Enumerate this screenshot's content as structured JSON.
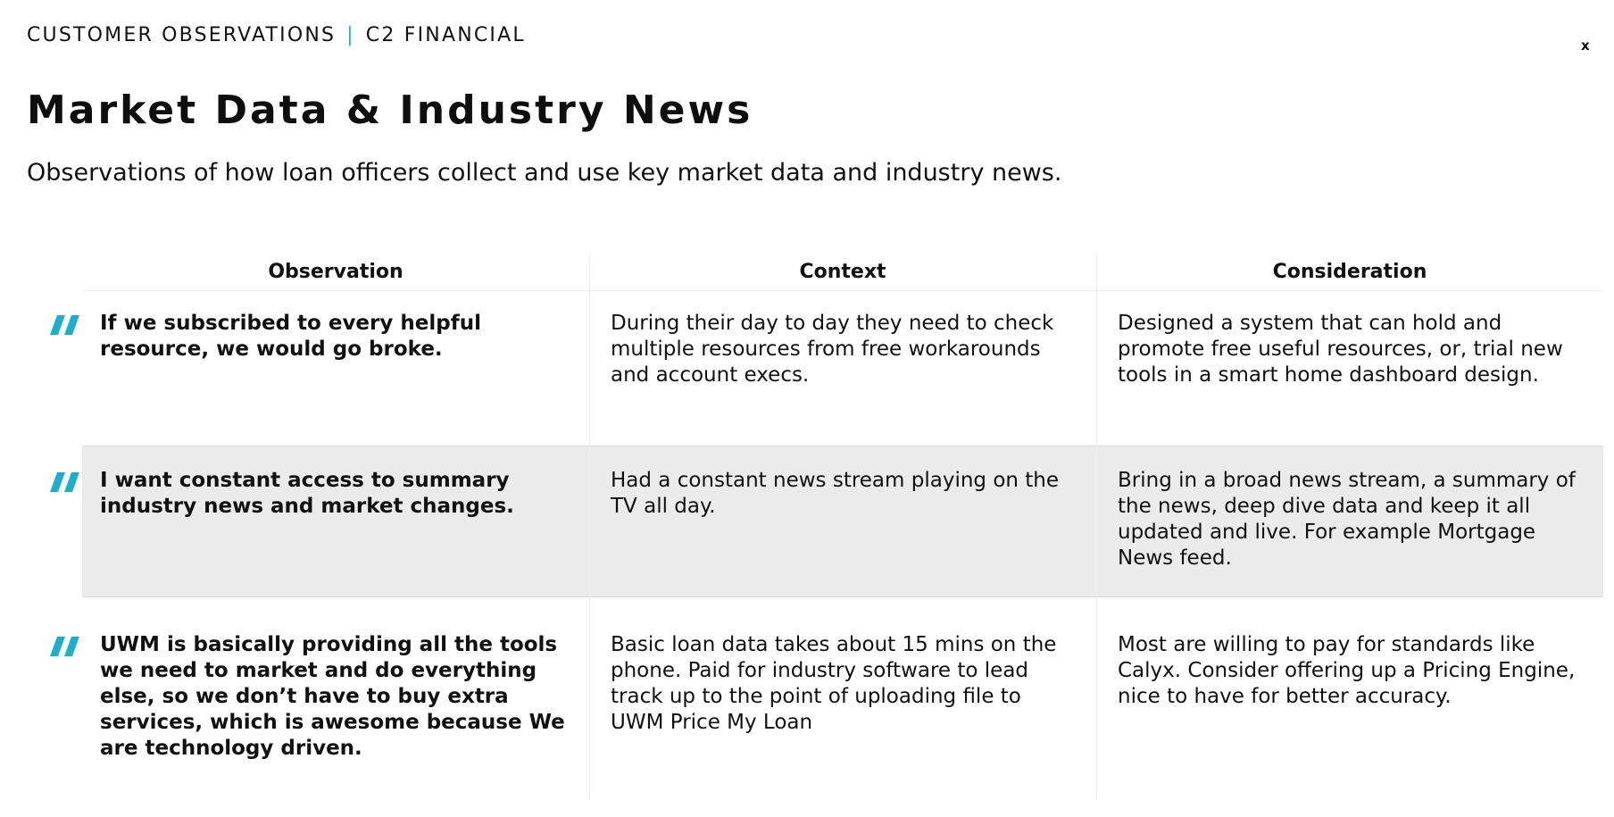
{
  "header": {
    "brand_left": "CUSTOMER OBSERVATIONS",
    "brand_sep": "|",
    "brand_right": "C2 FINANCIAL",
    "close_label": "x"
  },
  "page": {
    "title": "Market Data & Industry News",
    "subtitle": "Observations of how loan officers collect and use key market data and industry news."
  },
  "table": {
    "columns": [
      "Observation",
      "Context",
      "Consideration"
    ],
    "rows": [
      {
        "observation": "If we subscribed to every helpful resource, we would go broke.",
        "context": "During their day to day they need to check multiple resources from free workarounds and account execs.",
        "consideration": "Designed a system that can hold and promote free useful resources, or, trial new tools in a smart home dashboard design."
      },
      {
        "observation": "I want constant access to summary industry news and market changes.",
        "context": "Had a constant news stream playing on the TV all day.",
        "consideration": "Bring in a broad news stream, a summary of the news, deep dive data and keep it all updated and live. For example Mortgage News feed."
      },
      {
        "observation": "UWM is basically providing all the tools we need to market and do everything else, so we don’t have to buy extra services, which is awesome because We are technology driven.",
        "context": "Basic loan data takes about 15 mins on the phone.  Paid for industry software  to lead track up to the point of uploading file to UWM Price My Loan",
        "consideration": "Most are willing to pay for standards like Calyx. Consider offering up a Pricing Engine, nice to have for better accuracy."
      }
    ]
  },
  "colors": {
    "accent": "#1fb0c9",
    "row_highlight": "#ebebec",
    "text": "#111111"
  },
  "icons": {
    "quote": "quote-marks-icon",
    "close": "close-icon"
  }
}
